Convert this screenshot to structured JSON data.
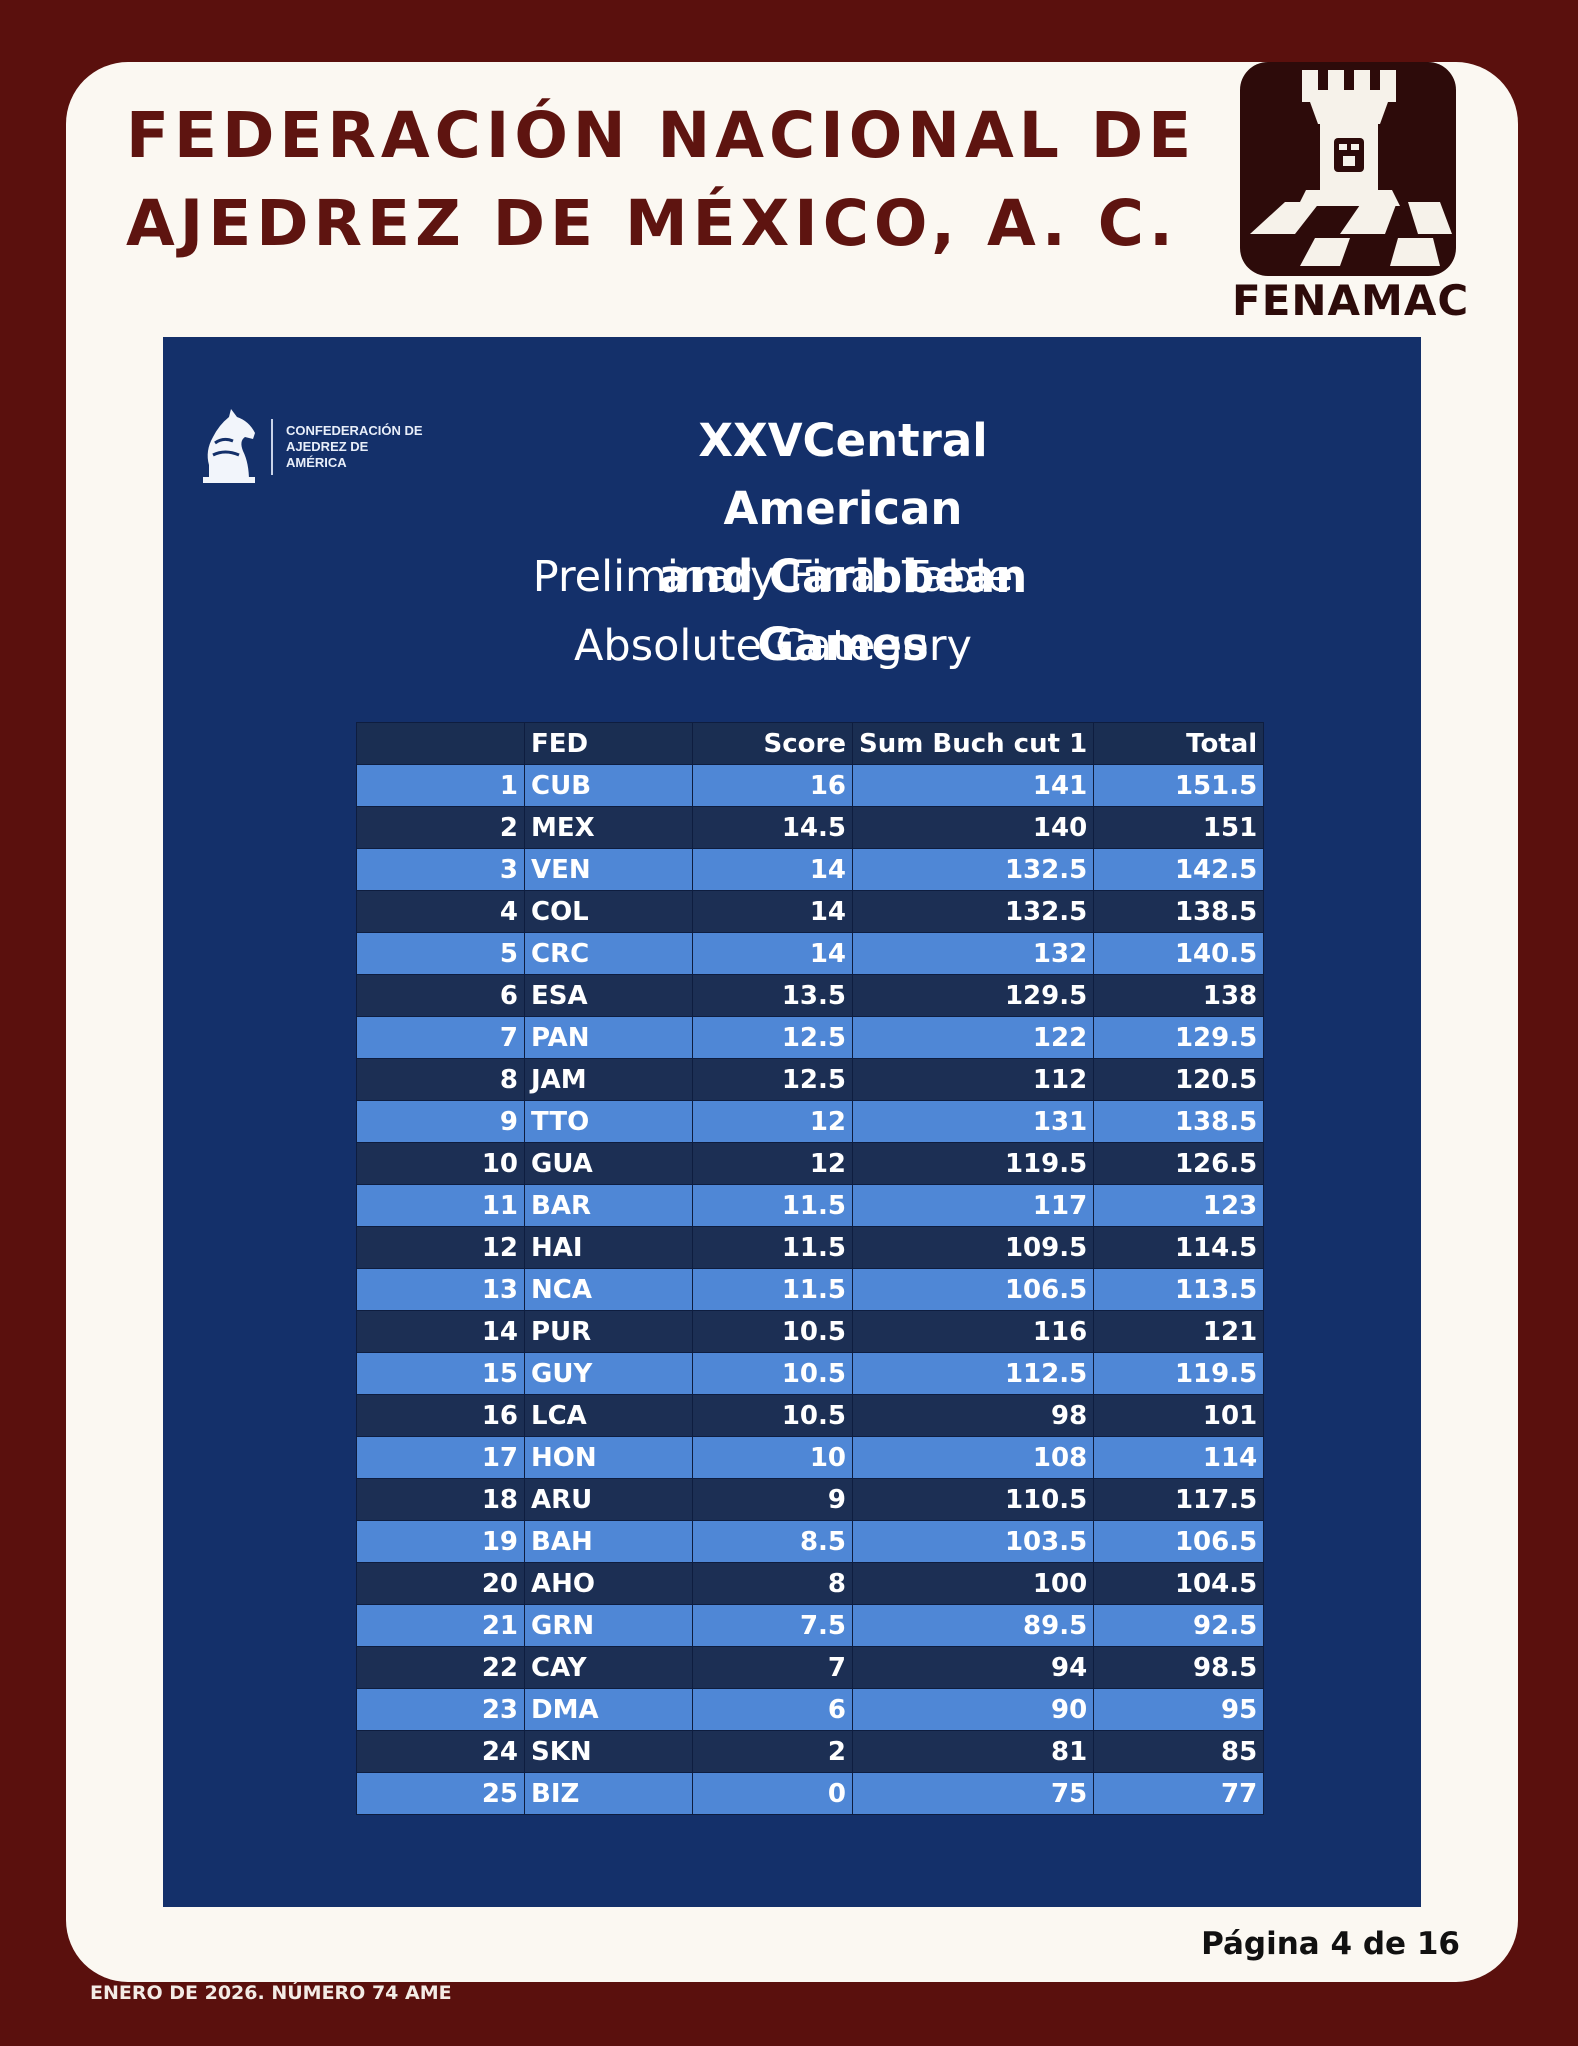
{
  "header": {
    "org_line1": "FEDERACIÓN NACIONAL DE",
    "org_line2": "AJEDREZ DE MÉXICO, A. C.",
    "logo_text": "FENAMAC"
  },
  "confederation": {
    "name": "CONFEDERACIÓN DE AJEDREZ DE AMÉRICA"
  },
  "event": {
    "title_line1": "XXVCentral American",
    "title_line2": "and Caribbean Games",
    "subtitle1": "Preliminary Final Table",
    "subtitle2": "Absolute Category"
  },
  "table": {
    "headers": [
      "",
      "FED",
      "Score",
      "Sum Buch cut 1",
      "Total"
    ],
    "rows": [
      {
        "rank": "1",
        "fed": "CUB",
        "score": "16",
        "buch": "141",
        "total": "151.5"
      },
      {
        "rank": "2",
        "fed": "MEX",
        "score": "14.5",
        "buch": "140",
        "total": "151"
      },
      {
        "rank": "3",
        "fed": "VEN",
        "score": "14",
        "buch": "132.5",
        "total": "142.5"
      },
      {
        "rank": "4",
        "fed": "COL",
        "score": "14",
        "buch": "132.5",
        "total": "138.5"
      },
      {
        "rank": "5",
        "fed": "CRC",
        "score": "14",
        "buch": "132",
        "total": "140.5"
      },
      {
        "rank": "6",
        "fed": "ESA",
        "score": "13.5",
        "buch": "129.5",
        "total": "138"
      },
      {
        "rank": "7",
        "fed": "PAN",
        "score": "12.5",
        "buch": "122",
        "total": "129.5"
      },
      {
        "rank": "8",
        "fed": "JAM",
        "score": "12.5",
        "buch": "112",
        "total": "120.5"
      },
      {
        "rank": "9",
        "fed": "TTO",
        "score": "12",
        "buch": "131",
        "total": "138.5"
      },
      {
        "rank": "10",
        "fed": "GUA",
        "score": "12",
        "buch": "119.5",
        "total": "126.5"
      },
      {
        "rank": "11",
        "fed": "BAR",
        "score": "11.5",
        "buch": "117",
        "total": "123"
      },
      {
        "rank": "12",
        "fed": "HAI",
        "score": "11.5",
        "buch": "109.5",
        "total": "114.5"
      },
      {
        "rank": "13",
        "fed": "NCA",
        "score": "11.5",
        "buch": "106.5",
        "total": "113.5"
      },
      {
        "rank": "14",
        "fed": "PUR",
        "score": "10.5",
        "buch": "116",
        "total": "121"
      },
      {
        "rank": "15",
        "fed": "GUY",
        "score": "10.5",
        "buch": "112.5",
        "total": "119.5"
      },
      {
        "rank": "16",
        "fed": "LCA",
        "score": "10.5",
        "buch": "98",
        "total": "101"
      },
      {
        "rank": "17",
        "fed": "HON",
        "score": "10",
        "buch": "108",
        "total": "114"
      },
      {
        "rank": "18",
        "fed": "ARU",
        "score": "9",
        "buch": "110.5",
        "total": "117.5"
      },
      {
        "rank": "19",
        "fed": "BAH",
        "score": "8.5",
        "buch": "103.5",
        "total": "106.5"
      },
      {
        "rank": "20",
        "fed": "AHO",
        "score": "8",
        "buch": "100",
        "total": "104.5"
      },
      {
        "rank": "21",
        "fed": "GRN",
        "score": "7.5",
        "buch": "89.5",
        "total": "92.5"
      },
      {
        "rank": "22",
        "fed": "CAY",
        "score": "7",
        "buch": "94",
        "total": "98.5"
      },
      {
        "rank": "23",
        "fed": "DMA",
        "score": "6",
        "buch": "90",
        "total": "95"
      },
      {
        "rank": "24",
        "fed": "SKN",
        "score": "2",
        "buch": "81",
        "total": "85"
      },
      {
        "rank": "25",
        "fed": "BIZ",
        "score": "0",
        "buch": "75",
        "total": "77"
      }
    ]
  },
  "page_number": "Página 4 de 16",
  "footer": "ENERO DE 2026. NÚMERO 74 AME",
  "colors": {
    "background": "#5a100d",
    "card": "#fbf8f2",
    "title": "#5e1410",
    "panel": "#14306a",
    "row_light": "#4f87d6",
    "row_dark": "#1c2f54"
  },
  "icons": [
    "fenamac-rook-logo-icon",
    "confederation-knight-logo-icon"
  ]
}
